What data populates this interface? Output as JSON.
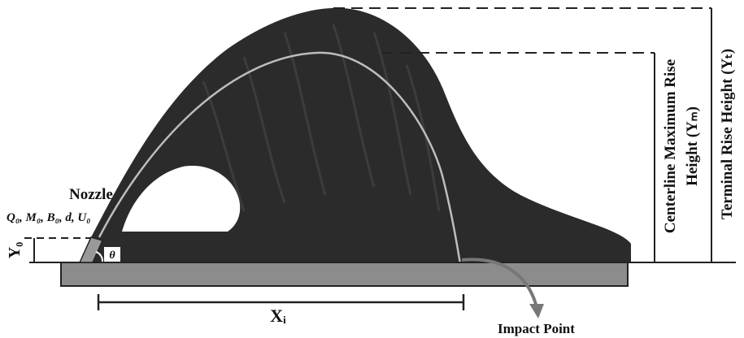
{
  "labels": {
    "nozzle": "Nozzle",
    "parameters": "Q₀, M₀, B₀, d, U₀",
    "initial_height": "Y₀",
    "angle": "θ",
    "impact_distance": "Xᵢ",
    "impact_point": "Impact Point",
    "centerline_height_line1": "Centerline Maximum Rise",
    "centerline_height_line2": "Height (Yₘ)",
    "terminal_height": "Terminal Rise Height (Yₜ)"
  }
}
